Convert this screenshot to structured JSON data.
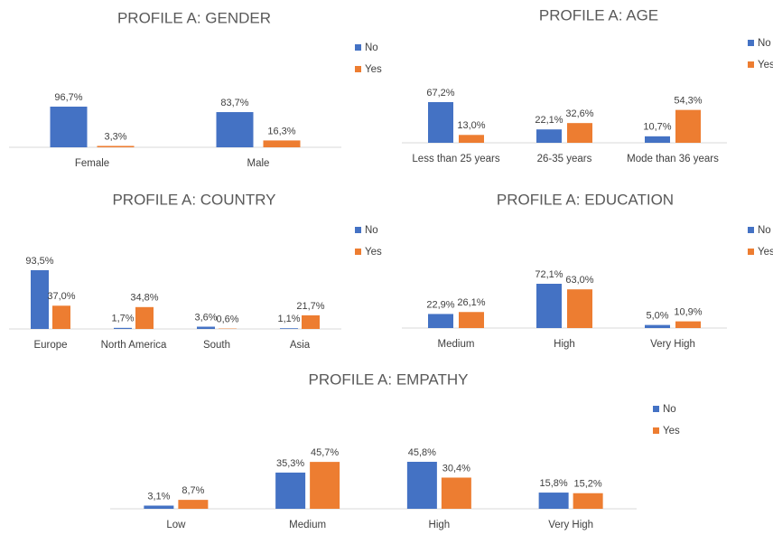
{
  "chart_data": [
    {
      "type": "bar",
      "title": "PROFILE A: GENDER",
      "categories": [
        "Female",
        "Male"
      ],
      "series": [
        {
          "name": "No",
          "color": "#4472c4",
          "values": [
            96.7,
            83.7
          ],
          "value_labels": [
            "96,7%",
            "83,7%"
          ]
        },
        {
          "name": "Yes",
          "color": "#ed7d31",
          "values": [
            3.3,
            16.3
          ],
          "value_labels": [
            "3,3%",
            "16,3%"
          ]
        }
      ]
    },
    {
      "type": "bar",
      "title": "PROFILE A: AGE",
      "categories": [
        "Less than 25 years",
        "26-35 years",
        "Mode than 36 years"
      ],
      "series": [
        {
          "name": "No",
          "color": "#4472c4",
          "values": [
            67.2,
            22.1,
            10.7
          ],
          "value_labels": [
            "67,2%",
            "22,1%",
            "10,7%"
          ]
        },
        {
          "name": "Yes",
          "color": "#ed7d31",
          "values": [
            13.0,
            32.6,
            54.3
          ],
          "value_labels": [
            "13,0%",
            "32,6%",
            "54,3%"
          ]
        }
      ]
    },
    {
      "type": "bar",
      "title": "PROFILE A: COUNTRY",
      "categories": [
        "Europe",
        "North America",
        "South",
        "Asia"
      ],
      "series": [
        {
          "name": "No",
          "color": "#4472c4",
          "values": [
            93.5,
            1.7,
            3.6,
            1.1
          ],
          "value_labels": [
            "93,5%",
            "1,7%",
            "3,6%",
            "1,1%"
          ]
        },
        {
          "name": "Yes",
          "color": "#ed7d31",
          "values": [
            37.0,
            34.8,
            0.6,
            21.7
          ],
          "value_labels": [
            "37,0%",
            "34,8%",
            "0,6%",
            "21,7%"
          ]
        }
      ]
    },
    {
      "type": "bar",
      "title": "PROFILE A: EDUCATION",
      "categories": [
        "Medium",
        "High",
        "Very High"
      ],
      "series": [
        {
          "name": "No",
          "color": "#4472c4",
          "values": [
            22.9,
            72.1,
            5.0
          ],
          "value_labels": [
            "22,9%",
            "72,1%",
            "5,0%"
          ]
        },
        {
          "name": "Yes",
          "color": "#ed7d31",
          "values": [
            26.1,
            63.0,
            10.9
          ],
          "value_labels": [
            "26,1%",
            "63,0%",
            "10,9%"
          ]
        }
      ]
    },
    {
      "type": "bar",
      "title": "PROFILE A: EMPATHY",
      "categories": [
        "Low",
        "Medium",
        "High",
        "Very High"
      ],
      "series": [
        {
          "name": "No",
          "color": "#4472c4",
          "values": [
            3.1,
            35.3,
            45.8,
            15.8
          ],
          "value_labels": [
            "3,1%",
            "35,3%",
            "45,8%",
            "15,8%"
          ]
        },
        {
          "name": "Yes",
          "color": "#ed7d31",
          "values": [
            8.7,
            45.7,
            30.4,
            15.2
          ],
          "value_labels": [
            "8,7%",
            "45,7%",
            "30,4%",
            "15,2%"
          ]
        }
      ]
    }
  ]
}
